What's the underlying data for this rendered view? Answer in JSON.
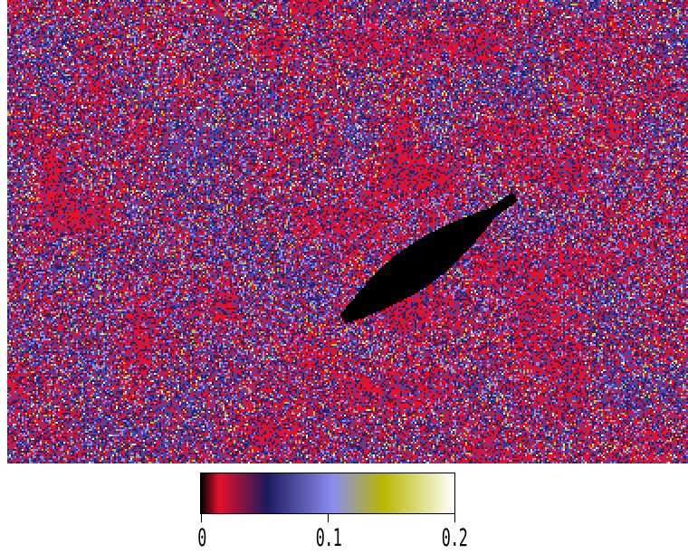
{
  "colorbar": {
    "tick_labels": [
      "0",
      "0.1",
      "0.2"
    ],
    "colormap": [
      "#000000",
      "#e8102a",
      "#1c1a5e",
      "#8c8cf0",
      "#b8b800",
      "#ffffff"
    ],
    "range": [
      0,
      0.2
    ]
  },
  "map": {
    "background_color": "#e8102a",
    "masked_region_color": "#000000"
  }
}
